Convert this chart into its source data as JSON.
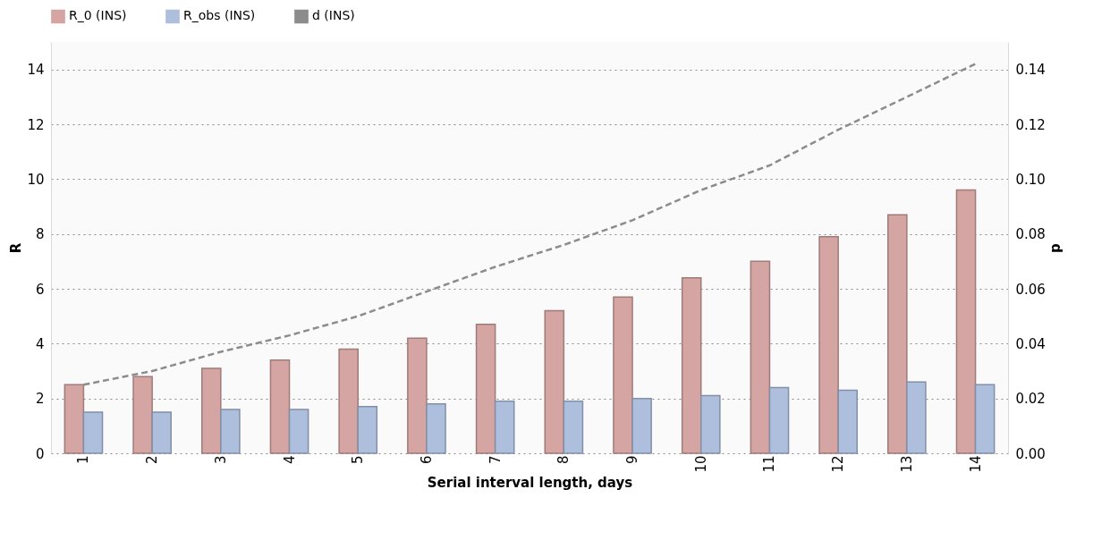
{
  "chart_data": {
    "type": "bar",
    "xlabel": "Serial interval length, days",
    "ylabel": "R",
    "y2label": "d",
    "categories": [
      "1",
      "2",
      "3",
      "4",
      "5",
      "6",
      "7",
      "8",
      "9",
      "10",
      "11",
      "12",
      "13",
      "14"
    ],
    "series": [
      {
        "name": "R_0 (INS)",
        "color": "#d4a5a3",
        "values": [
          2.5,
          2.8,
          3.1,
          3.4,
          3.8,
          4.2,
          4.7,
          5.2,
          5.7,
          6.4,
          7.0,
          7.9,
          8.7,
          9.6
        ]
      },
      {
        "name": "R_obs (INS)",
        "color": "#aebfde",
        "values": [
          1.5,
          1.5,
          1.6,
          1.6,
          1.7,
          1.8,
          1.9,
          1.9,
          2.0,
          2.1,
          2.4,
          2.3,
          2.6,
          2.5
        ]
      },
      {
        "name": "d (INS)",
        "type": "line",
        "axis": "y2",
        "line_style": "dashed",
        "color": "#8c8c8c",
        "values": [
          0.025,
          0.03,
          0.037,
          0.043,
          0.05,
          0.059,
          0.068,
          0.076,
          0.085,
          0.096,
          0.105,
          0.118,
          0.13,
          0.142
        ]
      }
    ],
    "ylim": [
      0,
      15
    ],
    "yticks": [
      0,
      2,
      4,
      6,
      8,
      10,
      12,
      14
    ],
    "y2lim": [
      0,
      0.15
    ],
    "y2ticks": [
      {
        "value": 0,
        "label": "0.00"
      },
      {
        "value": 0.02,
        "label": "0.02"
      },
      {
        "value": 0.04,
        "label": "0.04"
      },
      {
        "value": 0.06,
        "label": "0.06"
      },
      {
        "value": 0.08,
        "label": "0.08"
      },
      {
        "value": 0.1,
        "label": "0.10"
      },
      {
        "value": 0.12,
        "label": "0.12"
      },
      {
        "value": 0.14,
        "label": "0.14"
      }
    ],
    "grid": "y",
    "legend": "top",
    "marker": "none"
  }
}
